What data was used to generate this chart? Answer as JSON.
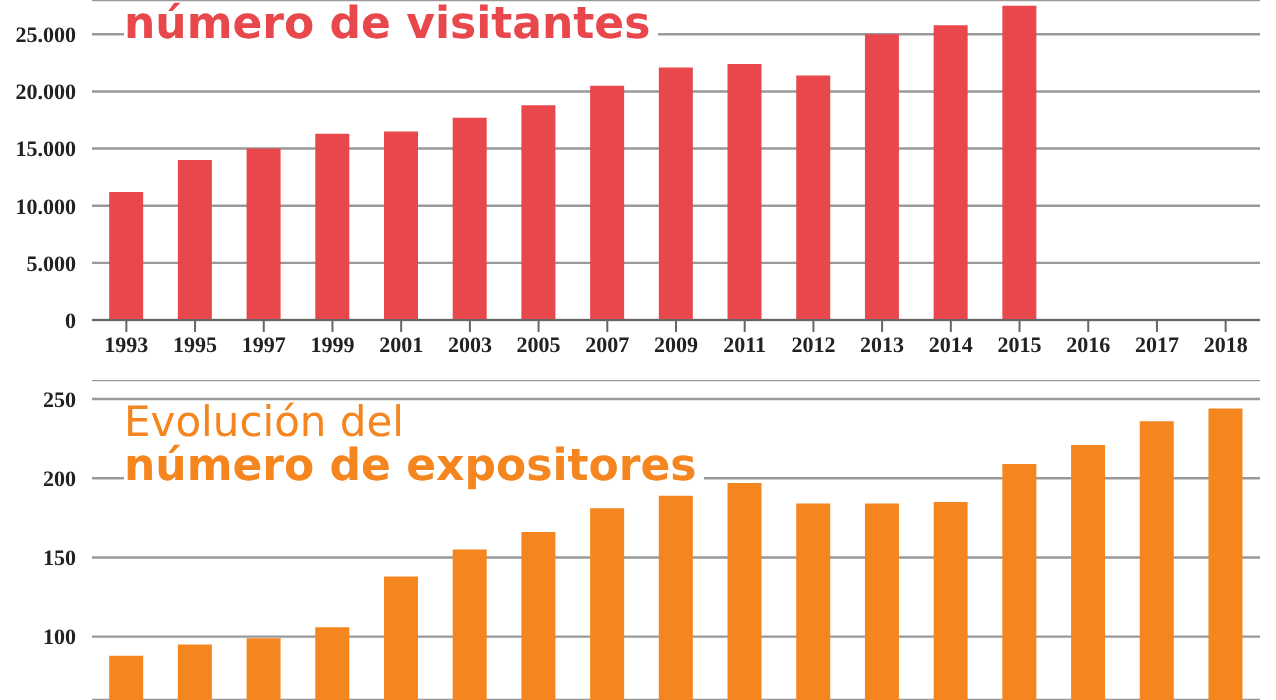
{
  "chart_data": [
    {
      "type": "bar",
      "subtitle": "número de visitantes",
      "categories": [
        "1993",
        "1995",
        "1997",
        "1999",
        "2001",
        "2003",
        "2005",
        "2007",
        "2009",
        "2011",
        "2012",
        "2013",
        "2014",
        "2015",
        "2016",
        "2017",
        "2018"
      ],
      "values": [
        11200,
        14000,
        15000,
        16300,
        16500,
        17700,
        18800,
        20500,
        22100,
        22400,
        21400,
        25000,
        25800,
        27500,
        null,
        null,
        null
      ],
      "color": "#e8474c",
      "ylim": [
        0,
        28000
      ],
      "yticks": [
        {
          "value": 0,
          "label": "0"
        },
        {
          "value": 5000,
          "label": "5.000"
        },
        {
          "value": 10000,
          "label": "10.000"
        },
        {
          "value": 15000,
          "label": "15.000"
        },
        {
          "value": 20000,
          "label": "20.000"
        },
        {
          "value": 25000,
          "label": "25.000"
        }
      ],
      "grid": "y"
    },
    {
      "type": "bar",
      "title": "Evolución del",
      "subtitle": "número de expositores",
      "categories": [
        null,
        null,
        null,
        null,
        null,
        null,
        null,
        null,
        null,
        null,
        null,
        null,
        null,
        null,
        null,
        null,
        null
      ],
      "values": [
        88,
        95,
        99,
        106,
        138,
        155,
        166,
        181,
        189,
        197,
        184,
        184,
        185,
        209,
        221,
        236,
        244
      ],
      "color": "#f5861f",
      "ylim": [
        60,
        262
      ],
      "yticks": [
        100,
        150,
        200,
        250
      ],
      "grid": "y",
      "tick_labels": "y"
    }
  ]
}
